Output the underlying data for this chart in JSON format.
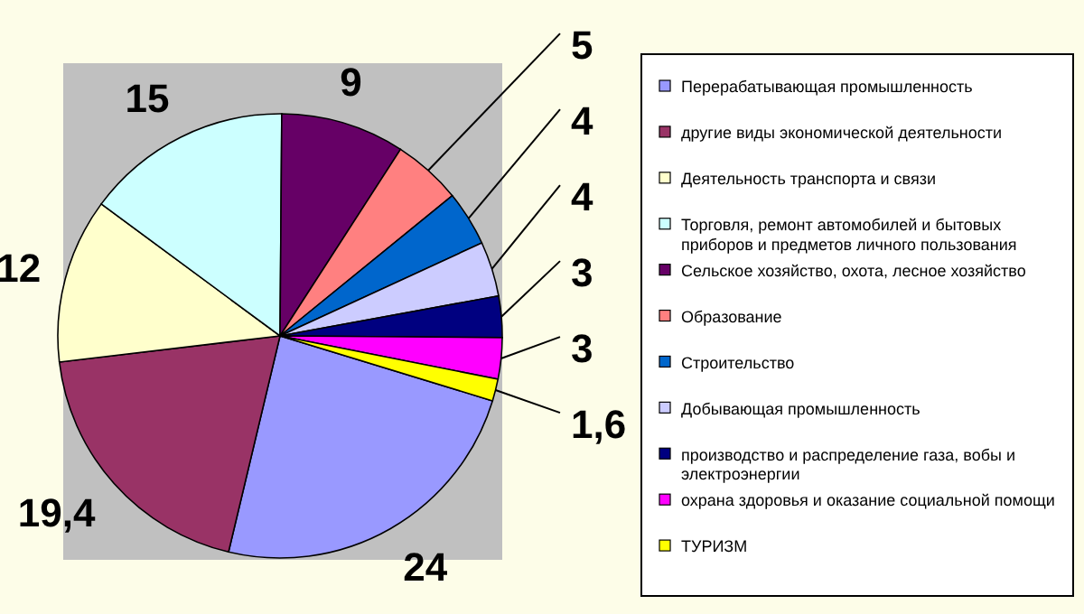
{
  "chart_data": {
    "type": "pie",
    "categories": [
      "Перерабатывающая промышленность",
      "другие виды экономической деятельности",
      "Деятельность транспорта и связи",
      "Торговля, ремонт автомобилей и бытовых приборов и предметов личного пользования",
      "Сельское хозяйство, охота, лесное хозяйство",
      "Образование",
      "Строительство",
      "Добывающая промышленность",
      "производство и распределение газа, вобы и электроэнергии",
      "охрана здоровья и оказание социальной помощи",
      "ТУРИЗМ"
    ],
    "values": [
      24,
      19.4,
      12,
      15,
      9,
      5,
      4,
      4,
      3,
      3,
      1.6
    ],
    "value_labels": [
      "24",
      "19,4",
      "12",
      "15",
      "9",
      "5",
      "4",
      "4",
      "3",
      "3",
      "1,6"
    ],
    "colors": [
      "#9999ff",
      "#993366",
      "#ffffcc",
      "#ccffff",
      "#660066",
      "#ff8080",
      "#0066cc",
      "#ccccff",
      "#000080",
      "#ff00ff",
      "#ffff00"
    ],
    "legend": "right"
  }
}
